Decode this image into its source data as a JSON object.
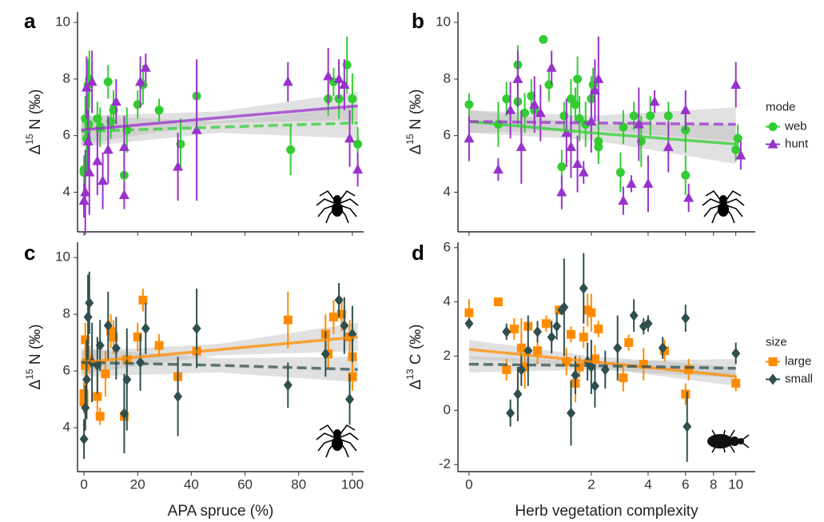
{
  "chart_data": [
    {
      "type": "scatter",
      "panel_label": "a",
      "ylabel": {
        "symbol": "Δ",
        "superscript": "15",
        "unit": " N (‰)"
      },
      "xlim": [
        -2.4,
        104.2
      ],
      "ylim": [
        2.6,
        10.37
      ],
      "xticks": [
        0,
        20,
        40,
        60,
        80,
        100
      ],
      "yticks": [
        4,
        6,
        8,
        10
      ],
      "show_xtick_labels": false,
      "series": [
        {
          "color": "#33cc33",
          "marker": "circle",
          "line_style": "dashed",
          "x": [
            0,
            0,
            0.5,
            1,
            1.5,
            1.8,
            2,
            5,
            6,
            9,
            10,
            11,
            15,
            16,
            20,
            22,
            28,
            36,
            42,
            77,
            91,
            93,
            95,
            98,
            100,
            102
          ],
          "values": [
            4.8,
            4.7,
            6.6,
            5.9,
            7.8,
            6.4,
            8.0,
            6.6,
            6.3,
            7.9,
            6.5,
            6.9,
            4.6,
            6.2,
            7.1,
            7.8,
            6.9,
            5.7,
            7.4,
            5.5,
            7.3,
            7.9,
            7.3,
            8.5,
            7.3,
            5.7
          ],
          "errors": [
            0.5,
            0.4,
            0.8,
            1.0,
            0.9,
            1.0,
            1.0,
            0.6,
            0.7,
            0.6,
            0.6,
            0.7,
            0.6,
            0.8,
            0.5,
            0.7,
            0.4,
            0.9,
            1.2,
            0.9,
            0.6,
            0.5,
            0.7,
            1.0,
            0.9,
            0.6
          ],
          "fit": {
            "x": [
              -1,
              50,
              102
            ],
            "values": [
              6.15,
              6.3,
              6.45
            ],
            "ci_lower": [
              5.6,
              6.1,
              5.9
            ],
            "ci_upper": [
              6.7,
              6.5,
              7.0
            ]
          }
        },
        {
          "color": "#9932cc",
          "marker": "triangle",
          "line_style": "solid",
          "x": [
            0,
            0.5,
            1,
            1.5,
            2,
            3,
            5,
            7,
            9,
            12,
            15,
            15,
            21,
            23,
            35,
            42,
            76,
            91,
            95,
            97,
            99,
            102
          ],
          "values": [
            3.7,
            4.0,
            7.7,
            5.8,
            4.7,
            7.9,
            5.1,
            4.4,
            5.5,
            7.2,
            3.9,
            5.6,
            7.9,
            8.4,
            4.9,
            6.2,
            7.9,
            8.1,
            8.0,
            7.8,
            5.9,
            4.8
          ],
          "errors": [
            0.6,
            1.5,
            1.1,
            1.1,
            1.5,
            1.1,
            1.2,
            1.0,
            1.2,
            0.8,
            0.5,
            1.1,
            0.9,
            0.5,
            1.2,
            2.5,
            0.7,
            1.0,
            0.7,
            0.9,
            1.0,
            0.6
          ],
          "fit": {
            "x": [
              -1,
              50,
              102
            ],
            "values": [
              6.2,
              6.63,
              7.05
            ],
            "ci_lower": [
              5.7,
              6.45,
              6.55
            ],
            "ci_upper": [
              6.7,
              6.85,
              7.55
            ]
          }
        }
      ]
    },
    {
      "type": "scatter",
      "panel_label": "b",
      "ylabel": {
        "symbol": "Δ",
        "superscript": "15",
        "unit": " N (‰)"
      },
      "xscale": "log1p",
      "xlim": [
        -0.095,
        12.1
      ],
      "ylim": [
        2.6,
        10.37
      ],
      "xticks": [
        0,
        2,
        4,
        6,
        8,
        10
      ],
      "yticks": [
        4,
        6,
        8,
        10
      ],
      "show_xtick_labels": false,
      "legend_title": "mode",
      "series": [
        {
          "name": "web",
          "color": "#33cc33",
          "marker": "circle",
          "line_style": "solid",
          "x": [
            0,
            0.3,
            0.4,
            0.55,
            0.55,
            0.65,
            0.75,
            0.8,
            0.95,
            1.05,
            1.3,
            1.35,
            1.5,
            1.6,
            1.65,
            1.7,
            1.85,
            2.0,
            2.05,
            2.2,
            2.2,
            2.9,
            3.0,
            3.4,
            3.7,
            4.1,
            5.0,
            6.0,
            6.0,
            10,
            10.2
          ],
          "values": [
            7.1,
            6.4,
            7.3,
            8.5,
            7.2,
            6.8,
            7.4,
            6.9,
            9.4,
            7.8,
            4.9,
            6.7,
            7.3,
            7.1,
            8.0,
            6.6,
            6.4,
            7.3,
            7.8,
            5.8,
            5.6,
            4.7,
            6.3,
            6.7,
            5.8,
            6.7,
            6.7,
            6.2,
            4.6,
            5.5,
            5.9
          ],
          "errors": [
            0.4,
            0.8,
            0.6,
            0.7,
            0.8,
            0.7,
            0.6,
            0.6,
            0.1,
            0.6,
            0.6,
            0.5,
            0.7,
            0.6,
            0.8,
            0.8,
            0.8,
            0.8,
            0.6,
            0.8,
            0.4,
            0.7,
            0.6,
            0.5,
            0.9,
            0.7,
            0.5,
            0.8,
            0.7,
            0.4,
            0.5
          ],
          "fit": {
            "x": [
              0,
              2,
              10
            ],
            "values": [
              6.5,
              6.1,
              5.7
            ],
            "ci_lower": [
              6.1,
              5.85,
              5.0
            ],
            "ci_upper": [
              6.9,
              6.4,
              6.4
            ]
          }
        },
        {
          "name": "hunt",
          "color": "#9932cc",
          "marker": "triangle",
          "line_style": "dashed",
          "x": [
            0,
            0.3,
            0.45,
            0.55,
            0.6,
            0.8,
            0.9,
            1.1,
            1.3,
            1.4,
            1.5,
            1.65,
            1.8,
            2.0,
            2.1,
            2.2,
            3.0,
            3.3,
            3.6,
            4.0,
            4.3,
            5.0,
            6.0,
            6.2,
            10,
            10.5
          ],
          "values": [
            5.9,
            4.8,
            6.9,
            8.0,
            5.6,
            7.1,
            6.8,
            8.4,
            4.0,
            6.1,
            5.6,
            5.0,
            4.7,
            6.5,
            7.6,
            8.0,
            3.7,
            4.3,
            6.4,
            4.3,
            7.2,
            5.6,
            6.9,
            3.8,
            7.8,
            5.3
          ],
          "errors": [
            0.8,
            0.4,
            1.0,
            1.0,
            1.3,
            1.0,
            1.0,
            0.6,
            0.6,
            1.2,
            1.1,
            1.0,
            0.4,
            1.1,
            1.1,
            1.5,
            0.5,
            0.3,
            1.3,
            1.0,
            0.4,
            0.9,
            0.7,
            0.5,
            0.8,
            0.5
          ],
          "fit": {
            "x": [
              0,
              2,
              10
            ],
            "values": [
              6.5,
              6.45,
              6.4
            ],
            "ci_lower": [
              6.1,
              6.2,
              5.8
            ],
            "ci_upper": [
              6.9,
              6.7,
              7.0
            ]
          }
        }
      ]
    },
    {
      "type": "scatter",
      "panel_label": "c",
      "ylabel": {
        "symbol": "Δ",
        "superscript": "15",
        "unit": " N (‰)"
      },
      "xlabel": "APA spruce (%)",
      "xlim": [
        -2.4,
        104.2
      ],
      "ylim": [
        2.45,
        10.54
      ],
      "xticks": [
        0,
        20,
        40,
        60,
        80,
        100
      ],
      "yticks": [
        4,
        6,
        8,
        10
      ],
      "show_xtick_labels": true,
      "series": [
        {
          "color": "#ff8c00",
          "marker": "square",
          "line_style": "solid",
          "x": [
            0,
            0,
            0.5,
            0.5,
            1,
            2,
            5,
            6,
            8,
            10,
            11,
            15,
            16,
            20,
            22,
            28,
            35,
            42,
            76,
            90,
            91,
            93,
            96,
            99,
            100,
            100
          ],
          "values": [
            5.2,
            4.9,
            6.2,
            7.1,
            6.3,
            6.4,
            5.1,
            4.4,
            5.9,
            7.4,
            7.2,
            4.4,
            6.4,
            7.2,
            8.5,
            6.9,
            5.8,
            6.7,
            7.8,
            7.3,
            6.6,
            7.9,
            8.0,
            7.2,
            6.5,
            5.8
          ],
          "errors": [
            0.4,
            0.4,
            0.7,
            0.6,
            0.6,
            0.5,
            0.8,
            0.3,
            0.8,
            0.6,
            0.6,
            0.5,
            0.5,
            0.5,
            0.4,
            0.4,
            0.5,
            0.5,
            1.0,
            0.7,
            0.5,
            0.6,
            0.6,
            0.6,
            0.6,
            0.5
          ],
          "fit": {
            "x": [
              -1,
              50,
              102
            ],
            "values": [
              6.3,
              6.75,
              7.2
            ],
            "ci_lower": [
              5.9,
              6.55,
              6.7
            ],
            "ci_upper": [
              6.7,
              6.95,
              7.7
            ]
          }
        },
        {
          "color": "#2f4f4f",
          "marker": "diamond",
          "line_style": "dashed",
          "x": [
            0,
            0.5,
            1,
            1.5,
            2,
            3,
            5,
            6,
            9,
            12,
            15,
            16,
            21,
            23,
            35,
            42,
            76,
            90,
            95,
            97,
            99,
            100
          ],
          "values": [
            3.6,
            4.7,
            5.7,
            7.9,
            8.4,
            6.3,
            6.2,
            6.9,
            7.6,
            6.8,
            4.5,
            5.7,
            6.3,
            7.5,
            5.1,
            7.5,
            5.5,
            6.6,
            8.5,
            7.6,
            5.0,
            7.3
          ],
          "errors": [
            0.7,
            0.8,
            1.4,
            1.5,
            1.1,
            1.4,
            1.0,
            0.9,
            1.2,
            1.1,
            1.4,
            1.8,
            1.0,
            0.9,
            1.4,
            1.4,
            0.8,
            0.8,
            0.6,
            1.0,
            0.9,
            1.0
          ],
          "fit": {
            "x": [
              -1,
              50,
              102
            ],
            "values": [
              6.3,
              6.2,
              6.05
            ],
            "ci_lower": [
              5.8,
              5.95,
              5.6
            ],
            "ci_upper": [
              6.8,
              6.45,
              6.5
            ]
          }
        }
      ]
    },
    {
      "type": "scatter",
      "panel_label": "d",
      "ylabel": {
        "symbol": "Δ",
        "superscript": "13",
        "unit": " C (‰)"
      },
      "xlabel": "Herb vegetation complexity",
      "xscale": "log1p",
      "xlim": [
        -0.095,
        12.1
      ],
      "ylim": [
        -2.26,
        6.2
      ],
      "xticks": [
        0,
        2,
        4,
        6,
        8,
        10
      ],
      "yticks": [
        -2,
        0,
        2,
        4,
        6
      ],
      "show_xtick_labels": true,
      "legend_title": "size",
      "series": [
        {
          "name": "large",
          "color": "#ff8c00",
          "marker": "square",
          "line_style": "solid",
          "x": [
            0,
            0.3,
            0.4,
            0.5,
            0.6,
            0.65,
            0.7,
            0.85,
            1.0,
            1.25,
            1.4,
            1.5,
            1.6,
            1.7,
            1.8,
            1.9,
            2.0,
            2.1,
            2.2,
            3.0,
            3.2,
            3.8,
            4.8,
            6.0,
            6.2,
            10
          ],
          "values": [
            3.6,
            4.0,
            1.5,
            3.0,
            2.3,
            1.6,
            3.1,
            2.2,
            3.2,
            3.7,
            1.8,
            2.8,
            1.0,
            1.6,
            2.7,
            3.7,
            3.6,
            1.9,
            3.0,
            1.2,
            2.5,
            1.7,
            2.2,
            0.6,
            1.5,
            1.0
          ],
          "errors": [
            0.5,
            0.1,
            0.4,
            0.4,
            1.1,
            0.8,
            0.2,
            0.5,
            0.3,
            0.1,
            0.5,
            0.3,
            0.7,
            0.4,
            0.4,
            0.6,
            0.7,
            0.5,
            0.3,
            0.5,
            0.3,
            0.6,
            0.4,
            0.4,
            0.4,
            0.3
          ],
          "fit": {
            "x": [
              0,
              2,
              10
            ],
            "values": [
              2.25,
              1.8,
              1.25
            ],
            "ci_lower": [
              1.9,
              1.6,
              0.9
            ],
            "ci_upper": [
              2.6,
              2.0,
              1.6
            ]
          }
        },
        {
          "name": "small",
          "color": "#2f4f4f",
          "marker": "diamond",
          "line_style": "dashed",
          "x": [
            0,
            0.4,
            0.45,
            0.55,
            0.6,
            0.7,
            0.85,
            1.1,
            1.2,
            1.3,
            1.35,
            1.5,
            1.6,
            1.8,
            1.9,
            2.0,
            2.1,
            2.4,
            2.8,
            3.4,
            3.8,
            4.0,
            4.7,
            6.0,
            6.1,
            10
          ],
          "values": [
            3.2,
            2.9,
            -0.1,
            0.6,
            1.5,
            2.2,
            2.9,
            2.7,
            3.1,
            3.7,
            3.8,
            -0.1,
            1.3,
            4.5,
            1.8,
            1.6,
            0.9,
            1.5,
            2.3,
            3.5,
            3.1,
            3.2,
            2.3,
            3.4,
            -0.6,
            2.1
          ],
          "errors": [
            0.2,
            0.3,
            0.5,
            1.0,
            0.6,
            1.3,
            0.4,
            0.6,
            0.5,
            0.1,
            1.8,
            1.2,
            0.7,
            1.3,
            0.7,
            1.0,
            0.8,
            0.7,
            1.2,
            0.6,
            0.3,
            0.3,
            0.4,
            0.5,
            1.3,
            0.4
          ],
          "fit": {
            "x": [
              0,
              2,
              10
            ],
            "values": [
              1.7,
              1.65,
              1.55
            ],
            "ci_lower": [
              1.4,
              1.5,
              1.2
            ],
            "ci_upper": [
              2.0,
              1.8,
              1.9
            ]
          }
        }
      ]
    }
  ]
}
